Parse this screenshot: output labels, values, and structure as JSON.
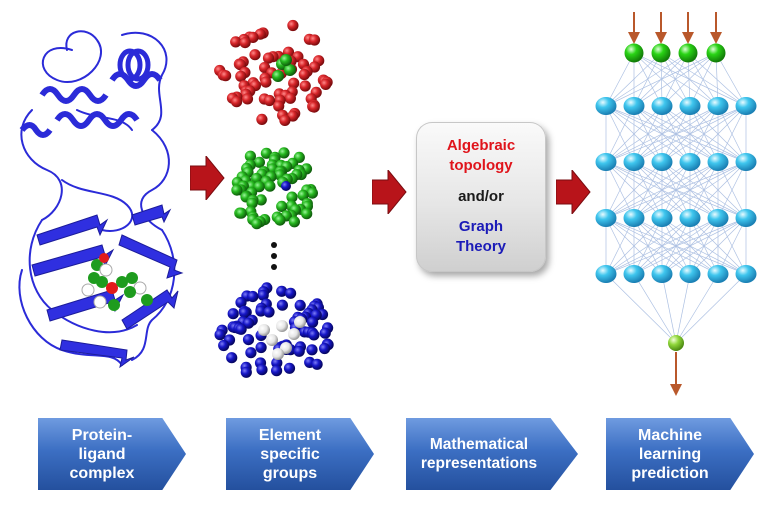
{
  "math_box": {
    "line1": "Algebraic\ntopology",
    "line2": "and/or",
    "line3": "Graph\nTheory"
  },
  "steps": [
    {
      "label": "Protein-\nligand\ncomplex"
    },
    {
      "label": "Element\nspecific\ngroups"
    },
    {
      "label": "Mathematical\nrepresentations"
    },
    {
      "label": "Machine\nlearning\nprediction"
    }
  ],
  "colors": {
    "protein": "#2b2bd8",
    "red_atoms": "#d8262a",
    "green_atoms": "#26b81f",
    "blue_atoms": "#1717c9",
    "flow_arrow": "#b8141a",
    "nn_node": "#3fc6ee",
    "nn_io_node": "#29d415",
    "step_box": "#3c6fc3"
  },
  "icons": {
    "vertical_ellipsis": "vertical-ellipsis-icon",
    "flow_arrow": "right-arrow-icon"
  }
}
